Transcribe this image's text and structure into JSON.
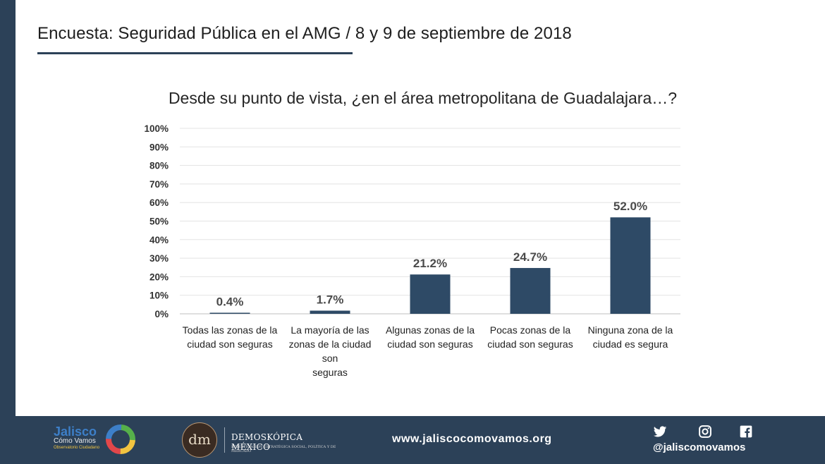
{
  "header": {
    "title": "Encuesta: Seguridad Pública en el AMG / 8 y 9 de septiembre de 2018"
  },
  "chart_data": {
    "type": "bar",
    "title": "Desde su punto de vista, ¿en el área metropolitana de Guadalajara…?",
    "categories": [
      "Todas las zonas de la ciudad son seguras",
      "La mayoría de las zonas de la ciudad son seguras",
      "Algunas zonas de la ciudad son seguras",
      "Pocas zonas de la ciudad son seguras",
      "Ninguna zona de la ciudad es segura"
    ],
    "category_lines": [
      [
        "Todas las zonas de la",
        "ciudad son seguras"
      ],
      [
        "La mayoría de las",
        "zonas de la ciudad son",
        "seguras"
      ],
      [
        "Algunas zonas de la",
        "ciudad son seguras"
      ],
      [
        "Pocas zonas de la",
        "ciudad son seguras"
      ],
      [
        "Ninguna zona de la",
        "ciudad es segura"
      ]
    ],
    "values": [
      0.4,
      1.7,
      21.2,
      24.7,
      52.0
    ],
    "data_labels": [
      "0.4%",
      "1.7%",
      "21.2%",
      "24.7%",
      "52.0%"
    ],
    "yticks": [
      "0%",
      "10%",
      "20%",
      "30%",
      "40%",
      "50%",
      "60%",
      "70%",
      "80%",
      "90%",
      "100%"
    ],
    "ylim": [
      0,
      100
    ],
    "grid": true,
    "bar_color": "#2e4a66"
  },
  "footer": {
    "jalisco_logo": {
      "line1": "Jalisco",
      "line2": "Cómo Vamos",
      "line3": "Observatorio Ciudadano"
    },
    "demoscopica_logo": {
      "monogram": "dm",
      "name": "DEMOSKÓPICA MÉXICO",
      "tagline": "INVESTIGACIÓN ESTRATÉGICA SOCIAL, POLÍTICA Y DE MERCADO"
    },
    "url": "www.jaliscocomovamos.org",
    "social_icons": [
      "twitter-icon",
      "instagram-icon",
      "facebook-icon"
    ],
    "handle": "@jaliscomovamos"
  }
}
